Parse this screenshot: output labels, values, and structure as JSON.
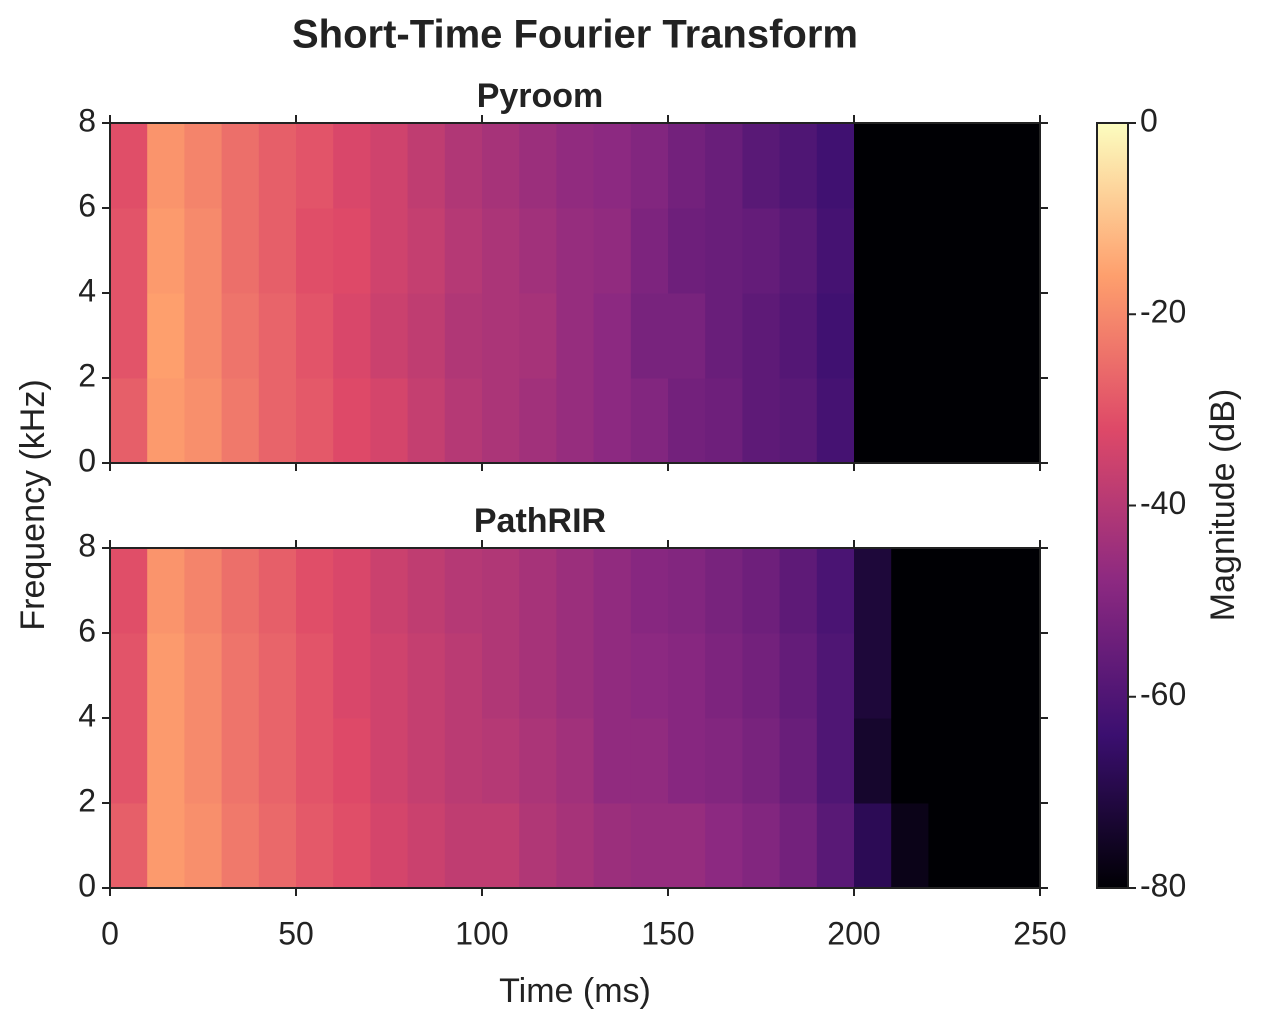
{
  "chart_data": {
    "type": "heatmap",
    "title": "Short-Time Fourier Transform",
    "xlabel": "Time (ms)",
    "ylabel": "Frequency (kHz)",
    "xlim": [
      0,
      250
    ],
    "xticks": [
      0,
      50,
      100,
      150,
      200,
      250
    ],
    "ylim": [
      0,
      8
    ],
    "yticks": [
      0,
      2,
      4,
      6,
      8
    ],
    "x": [
      0,
      10,
      20,
      30,
      40,
      50,
      60,
      70,
      80,
      90,
      100,
      110,
      120,
      130,
      140,
      150,
      160,
      170,
      180,
      190,
      200,
      210,
      220,
      230,
      240,
      250
    ],
    "y": [
      0,
      2,
      4,
      6,
      8
    ],
    "panels": [
      {
        "title": "Pyroom",
        "z": [
          [
            -28,
            -17,
            -19,
            -23,
            -27,
            -29,
            -32,
            -34,
            -37,
            -40,
            -42,
            -44,
            -46,
            -48,
            -50,
            -53,
            -54,
            -57,
            -58,
            -62,
            -80,
            -80,
            -80,
            -80,
            -80
          ],
          [
            -30,
            -16,
            -20,
            -24,
            -27,
            -30,
            -33,
            -36,
            -38,
            -41,
            -42,
            -43,
            -46,
            -48,
            -52,
            -52,
            -55,
            -57,
            -59,
            -63,
            -80,
            -80,
            -80,
            -80,
            -80
          ],
          [
            -30,
            -17,
            -20,
            -25,
            -28,
            -31,
            -32,
            -35,
            -37,
            -40,
            -42,
            -44,
            -46,
            -47,
            -51,
            -54,
            -55,
            -56,
            -58,
            -62,
            -80,
            -80,
            -80,
            -80,
            -80
          ],
          [
            -31,
            -18,
            -21,
            -25,
            -28,
            -30,
            -33,
            -35,
            -38,
            -41,
            -43,
            -45,
            -47,
            -48,
            -50,
            -53,
            -55,
            -58,
            -60,
            -63,
            -80,
            -80,
            -80,
            -80,
            -80
          ]
        ]
      },
      {
        "title": "PathRIR",
        "z": [
          [
            -28,
            -17,
            -19,
            -23,
            -26,
            -29,
            -31,
            -34,
            -36,
            -38,
            -38,
            -41,
            -43,
            -45,
            -46,
            -46,
            -48,
            -50,
            -53,
            -58,
            -68,
            -77,
            -80,
            -80,
            -80
          ],
          [
            -30,
            -17,
            -20,
            -24,
            -27,
            -30,
            -32,
            -35,
            -37,
            -39,
            -40,
            -42,
            -44,
            -47,
            -47,
            -49,
            -50,
            -52,
            -55,
            -60,
            -74,
            -80,
            -80,
            -80,
            -80
          ],
          [
            -30,
            -17,
            -20,
            -24,
            -27,
            -30,
            -33,
            -35,
            -37,
            -39,
            -41,
            -43,
            -45,
            -47,
            -48,
            -49,
            -51,
            -53,
            -56,
            -60,
            -72,
            -80,
            -80,
            -80,
            -80
          ],
          [
            -31,
            -18,
            -21,
            -25,
            -28,
            -31,
            -33,
            -36,
            -38,
            -40,
            -41,
            -43,
            -45,
            -47,
            -49,
            -50,
            -52,
            -54,
            -57,
            -61,
            -72,
            -80,
            -80,
            -80,
            -80
          ]
        ]
      }
    ],
    "colorbar": {
      "label": "Magnitude (dB)",
      "lim": [
        -80,
        0
      ],
      "ticks": [
        0,
        -20,
        -40,
        -60,
        -80
      ],
      "colors": [
        "#000004",
        "#3b0f70",
        "#8c2981",
        "#de4968",
        "#fe9f6d",
        "#fcfdbf"
      ]
    }
  }
}
